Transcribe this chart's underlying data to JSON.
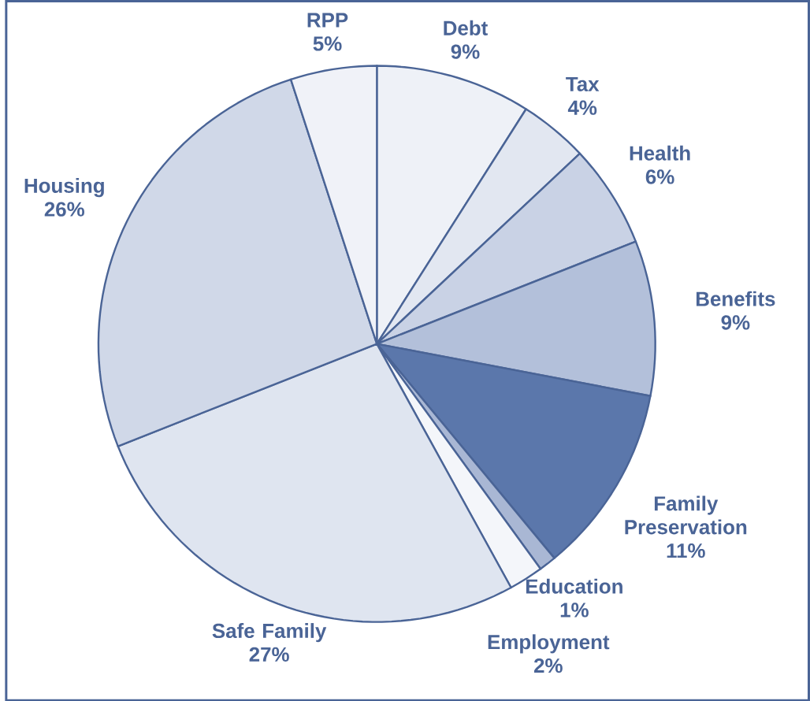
{
  "chart_data": {
    "type": "pie",
    "categories": [
      "Debt",
      "Tax",
      "Health",
      "Benefits",
      "Family Preservation",
      "Education",
      "Employment",
      "Safe Family",
      "Housing",
      "RPP"
    ],
    "values": [
      9,
      4,
      6,
      9,
      11,
      1,
      2,
      27,
      26,
      5
    ],
    "value_labels": [
      "9%",
      "4%",
      "6%",
      "9%",
      "11%",
      "1%",
      "2%",
      "27%",
      "26%",
      "5%"
    ],
    "colors": [
      "#eef1f7",
      "#e2e7f1",
      "#c9d2e5",
      "#b3c0da",
      "#5b77ab",
      "#a9b7d4",
      "#f4f6fa",
      "#dfe5f0",
      "#d0d8e8",
      "#f0f2f8"
    ]
  }
}
